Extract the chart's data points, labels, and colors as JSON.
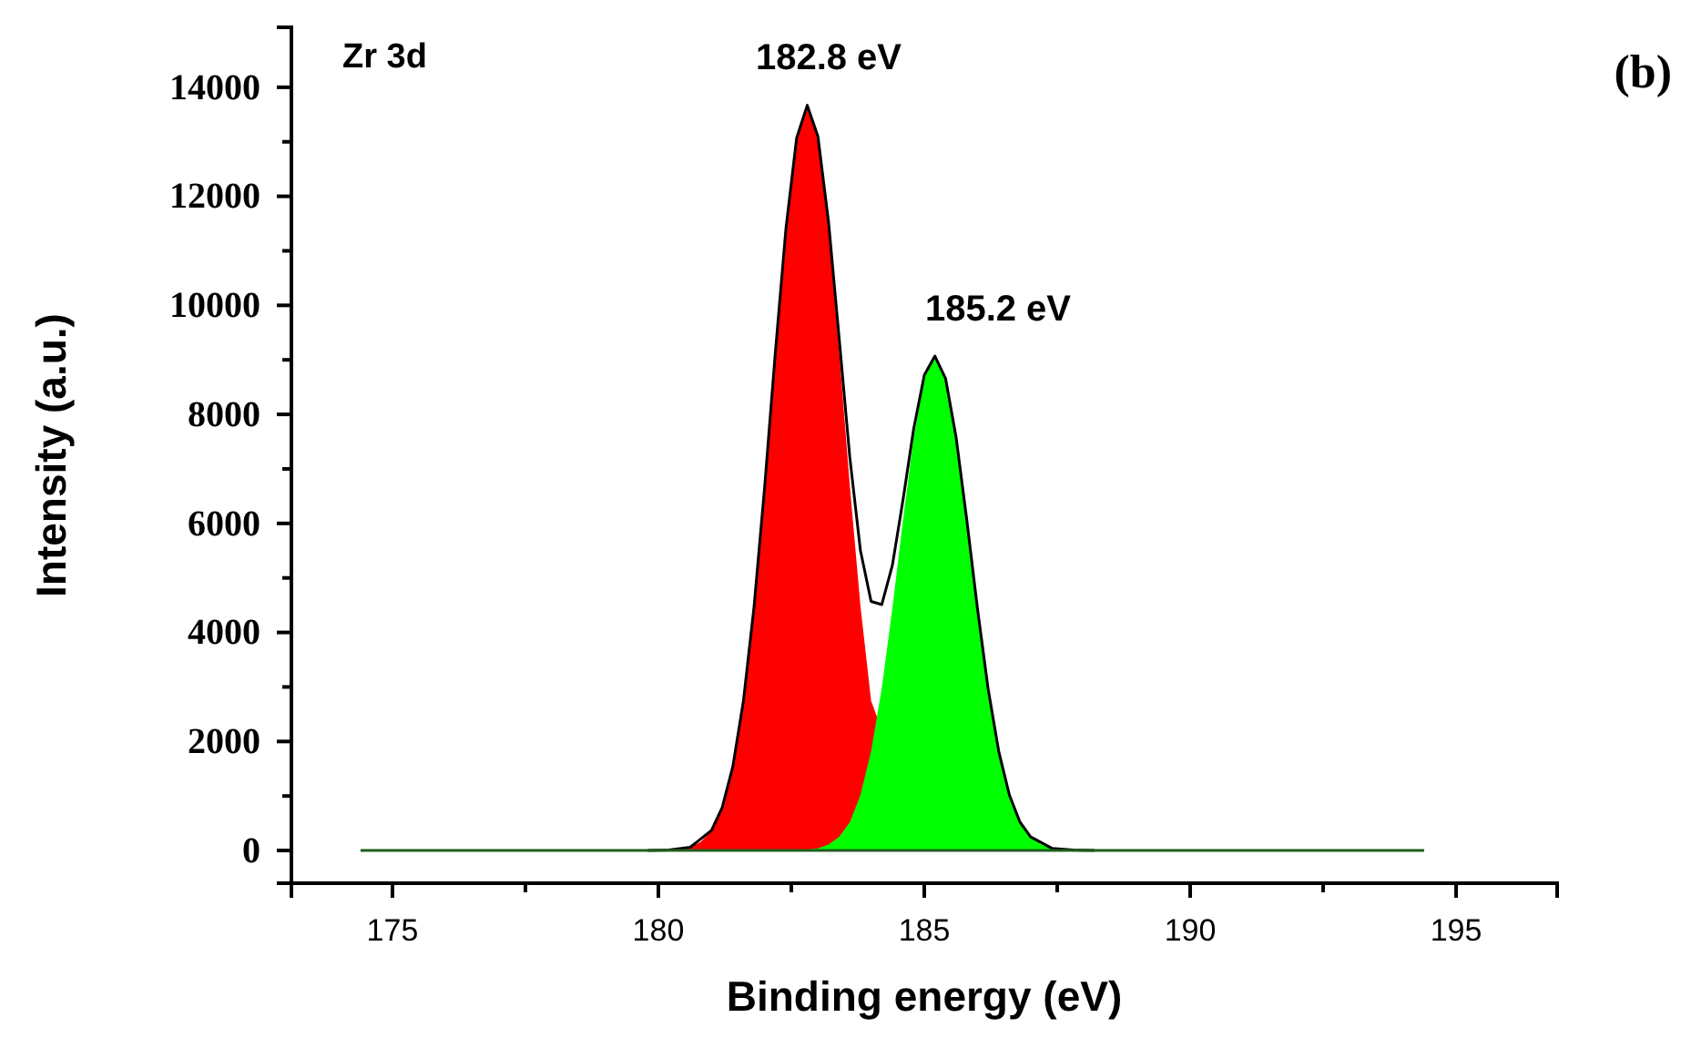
{
  "chart_data": {
    "type": "area",
    "title": "Zr 3d",
    "xlabel": "Binding energy (eV)",
    "ylabel": "Intensity (a.u.)",
    "xlim": [
      173.1,
      196.9
    ],
    "ylim": [
      -600,
      15100
    ],
    "xticks": [
      175,
      {
        "value": 177.5,
        "label": null
      },
      180,
      {
        "value": 182.5,
        "label": null
      },
      185,
      {
        "value": 187.5,
        "label": null
      },
      190,
      {
        "value": 192.5,
        "label": null
      },
      195
    ],
    "yticks": [
      0,
      {
        "value": 1000,
        "label": null
      },
      2000,
      {
        "value": 3000,
        "label": null
      },
      4000,
      {
        "value": 5000,
        "label": null
      },
      6000,
      {
        "value": 7000,
        "label": null
      },
      8000,
      {
        "value": 9000,
        "label": null
      },
      10000,
      {
        "value": 11000,
        "label": null
      },
      12000,
      {
        "value": 13000,
        "label": null
      },
      14000
    ],
    "grid": false,
    "annotations": [
      "182.8 eV",
      "185.2 eV",
      "(b)"
    ],
    "series": [
      {
        "color": "#ff0000",
        "x": [
          179.8,
          180.0,
          180.2,
          180.4,
          180.6,
          180.8,
          181.0,
          181.2,
          181.4,
          181.6,
          181.8,
          182.0,
          182.2,
          182.4,
          182.6,
          182.8,
          183.0,
          183.2,
          183.4,
          183.6,
          183.8,
          184.0,
          185.0,
          185.2,
          185.4,
          185.6,
          185.8
        ],
        "values": [
          0,
          0,
          10,
          20,
          60,
          160,
          370,
          790,
          1540,
          2750,
          4480,
          6690,
          9140,
          11420,
          13060,
          13650,
          13060,
          11420,
          9140,
          6690,
          4480,
          2750,
          60,
          20,
          10,
          0,
          0
        ]
      },
      {
        "color": "#00ff00",
        "x": [
          182.2,
          182.4,
          182.6,
          182.8,
          183.0,
          183.2,
          183.4,
          183.6,
          183.8,
          184.0,
          184.2,
          184.4,
          184.6,
          184.8,
          185.0,
          185.2,
          185.4,
          185.6,
          185.8,
          186.0,
          186.2,
          186.4,
          186.6,
          186.8,
          187.0,
          187.2,
          187.4,
          187.6,
          187.8,
          188.0,
          188.2
        ],
        "values": [
          0,
          0,
          10,
          20,
          40,
          110,
          250,
          520,
          1020,
          1820,
          2970,
          4440,
          6060,
          7570,
          8660,
          9050,
          8660,
          7570,
          6060,
          4440,
          2970,
          1820,
          1020,
          520,
          250,
          110,
          40,
          20,
          10,
          0,
          0
        ]
      },
      {
        "type": "line",
        "color": "#000000",
        "x": [
          179.8,
          180.2,
          180.6,
          181.0,
          181.2,
          181.4,
          181.6,
          181.8,
          182.0,
          182.2,
          182.4,
          182.6,
          182.8,
          183.0,
          183.2,
          183.4,
          183.6,
          183.8,
          184.0,
          184.2,
          184.4,
          184.6,
          184.8,
          185.0,
          185.2,
          185.4,
          185.6,
          185.8,
          186.0,
          186.2,
          186.4,
          186.6,
          186.8,
          187.0,
          187.4,
          187.8,
          188.2
        ],
        "values": [
          0,
          10,
          60,
          370,
          790,
          1540,
          2750,
          4480,
          6690,
          9140,
          11420,
          13070,
          13670,
          13100,
          11530,
          9390,
          7210,
          5500,
          4570,
          4510,
          5230,
          6430,
          7730,
          8720,
          9070,
          8660,
          7570,
          6060,
          4440,
          2970,
          1820,
          1020,
          520,
          250,
          40,
          10,
          0
        ]
      },
      {
        "type": "line",
        "color": "#1f5f1f",
        "x": [
          174.4,
          194.4
        ],
        "values": [
          0,
          0
        ]
      }
    ]
  }
}
